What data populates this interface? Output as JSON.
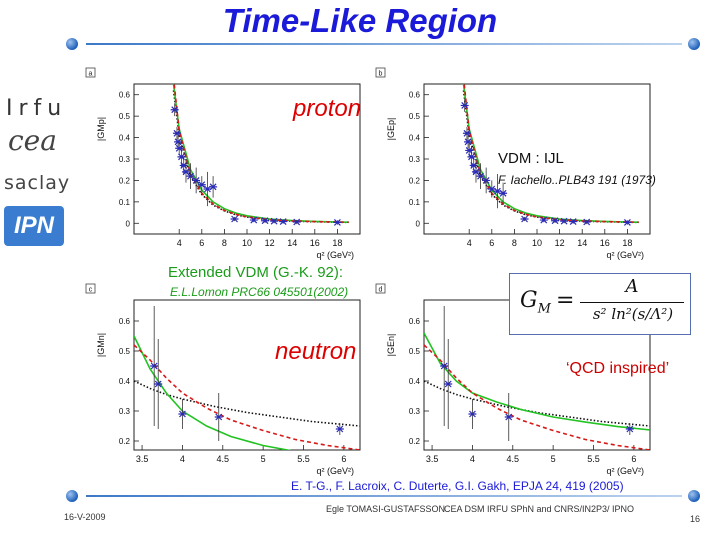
{
  "slide": {
    "title": "Time-Like  Region",
    "proton_label": "proton",
    "neutron_label": "neutron",
    "vdm_label": "VDM : IJL",
    "iachello_ref": "F. Iachello..PLB43 191 (1973)",
    "extended_vdm_label": "Extended VDM  (G.-K. 92):",
    "lomon_ref": "E.L.Lomon PRC66 045501(2002)",
    "qcd_label": "‘QCD inspired’",
    "formula_lhs": "G",
    "formula_sub": "M",
    "formula_eq": "=",
    "formula_num": "A",
    "formula_den": "s² ln²(s/Λ²)",
    "citation": "E. T-G., F. Lacroix, C. Duterte, G.I. Gakh, EPJA 24, 419 (2005)",
    "date": "16-V-2009",
    "author": "Egle TOMASI-GUSTAFSSON",
    "affiliation": "CEA DSM IRFU SPhN and  CNRS/IN2P3/ IPNO",
    "page_number": "16",
    "logos": {
      "irfu": "Irfu",
      "cea": "cea",
      "saclay": "saclay",
      "ipn": "IPN"
    }
  },
  "colors": {
    "title": "#1a1ad8",
    "model_green": "#22c322",
    "model_red": "#d61a1a",
    "model_black": "#111111",
    "data": "#2a2ab8"
  },
  "chart_data": [
    {
      "type": "scatter",
      "panel_tag": "a",
      "ylabel": "|GMp|",
      "xlabel": "q² (GeV²)",
      "xlim": [
        0,
        20
      ],
      "ylim": [
        -0.05,
        0.65
      ],
      "xticks": [
        "4",
        "6",
        "8",
        "10",
        "12",
        "14",
        "16",
        "18"
      ],
      "xtick_values": [
        4,
        6,
        8,
        10,
        12,
        14,
        16,
        18
      ],
      "yticks": [
        "0",
        "0.1",
        "0.2",
        "0.3",
        "0.4",
        "0.5",
        "0.6"
      ],
      "ytick_values": [
        0,
        0.1,
        0.2,
        0.3,
        0.4,
        0.5,
        0.6
      ],
      "points": [
        [
          3.6,
          0.53,
          0.03
        ],
        [
          3.8,
          0.42,
          0.03
        ],
        [
          3.9,
          0.38,
          0.03
        ],
        [
          4.0,
          0.35,
          0.03
        ],
        [
          4.2,
          0.31,
          0.05
        ],
        [
          4.4,
          0.27,
          0.04
        ],
        [
          4.6,
          0.24,
          0.05
        ],
        [
          5.0,
          0.22,
          0.06
        ],
        [
          5.5,
          0.2,
          0.06
        ],
        [
          6.0,
          0.18,
          0.04
        ],
        [
          6.5,
          0.16,
          0.08
        ],
        [
          7.0,
          0.17,
          0.05
        ],
        [
          8.9,
          0.02,
          0.01
        ],
        [
          10.6,
          0.015,
          0.01
        ],
        [
          11.6,
          0.012,
          0.01
        ],
        [
          12.4,
          0.01,
          0.01
        ],
        [
          13.2,
          0.008,
          0.01
        ],
        [
          14.4,
          0.006,
          0.01
        ],
        [
          18.0,
          0.004,
          0.01
        ]
      ],
      "green": [
        [
          3.5,
          0.65
        ],
        [
          4,
          0.44
        ],
        [
          5,
          0.25
        ],
        [
          6,
          0.155
        ],
        [
          7,
          0.1
        ],
        [
          8,
          0.068
        ],
        [
          9,
          0.048
        ],
        [
          10,
          0.035
        ],
        [
          12,
          0.02
        ],
        [
          14,
          0.013
        ],
        [
          16,
          0.009
        ],
        [
          18,
          0.006
        ],
        [
          19,
          0.005
        ]
      ],
      "red": [
        [
          3.5,
          0.68
        ],
        [
          4,
          0.43
        ],
        [
          5,
          0.23
        ],
        [
          6,
          0.14
        ],
        [
          7,
          0.09
        ],
        [
          8,
          0.06
        ],
        [
          9,
          0.042
        ],
        [
          10,
          0.03
        ],
        [
          12,
          0.017
        ],
        [
          14,
          0.011
        ],
        [
          16,
          0.008
        ],
        [
          18,
          0.006
        ],
        [
          19,
          0.005
        ]
      ],
      "black": [
        [
          3.5,
          0.62
        ],
        [
          4,
          0.41
        ],
        [
          5,
          0.22
        ],
        [
          6,
          0.135
        ],
        [
          7,
          0.085
        ],
        [
          8,
          0.058
        ],
        [
          9,
          0.04
        ],
        [
          10,
          0.029
        ],
        [
          12,
          0.016
        ],
        [
          14,
          0.01
        ],
        [
          16,
          0.007
        ],
        [
          18,
          0.005
        ],
        [
          19,
          0.004
        ]
      ]
    },
    {
      "type": "scatter",
      "panel_tag": "b",
      "ylabel": "|GEp|",
      "xlabel": "q² (GeV²)",
      "xlim": [
        0,
        20
      ],
      "ylim": [
        -0.05,
        0.65
      ],
      "xticks": [
        "4",
        "6",
        "8",
        "10",
        "12",
        "14",
        "16",
        "18"
      ],
      "xtick_values": [
        4,
        6,
        8,
        10,
        12,
        14,
        16,
        18
      ],
      "yticks": [
        "0",
        "0.1",
        "0.2",
        "0.3",
        "0.4",
        "0.5",
        "0.6"
      ],
      "ytick_values": [
        0,
        0.1,
        0.2,
        0.3,
        0.4,
        0.5,
        0.6
      ],
      "points": [
        [
          3.6,
          0.55,
          0.03
        ],
        [
          3.8,
          0.42,
          0.03
        ],
        [
          3.9,
          0.38,
          0.03
        ],
        [
          4.0,
          0.34,
          0.03
        ],
        [
          4.2,
          0.31,
          0.05
        ],
        [
          4.4,
          0.27,
          0.04
        ],
        [
          4.6,
          0.24,
          0.05
        ],
        [
          5.0,
          0.22,
          0.06
        ],
        [
          5.5,
          0.2,
          0.06
        ],
        [
          6.0,
          0.16,
          0.04
        ],
        [
          6.5,
          0.15,
          0.08
        ],
        [
          7.0,
          0.14,
          0.05
        ],
        [
          8.9,
          0.02,
          0.01
        ],
        [
          10.6,
          0.015,
          0.01
        ],
        [
          11.6,
          0.012,
          0.01
        ],
        [
          12.4,
          0.01,
          0.01
        ],
        [
          13.2,
          0.008,
          0.01
        ],
        [
          14.4,
          0.006,
          0.01
        ],
        [
          18.0,
          0.004,
          0.01
        ]
      ],
      "green": [
        [
          3.5,
          0.65
        ],
        [
          4,
          0.44
        ],
        [
          5,
          0.25
        ],
        [
          6,
          0.155
        ],
        [
          7,
          0.1
        ],
        [
          8,
          0.068
        ],
        [
          9,
          0.048
        ],
        [
          10,
          0.035
        ],
        [
          12,
          0.02
        ],
        [
          14,
          0.013
        ],
        [
          16,
          0.009
        ],
        [
          18,
          0.006
        ],
        [
          19,
          0.005
        ]
      ],
      "red": [
        [
          3.5,
          0.68
        ],
        [
          4,
          0.43
        ],
        [
          5,
          0.23
        ],
        [
          6,
          0.14
        ],
        [
          7,
          0.09
        ],
        [
          8,
          0.06
        ],
        [
          9,
          0.042
        ],
        [
          10,
          0.03
        ],
        [
          12,
          0.017
        ],
        [
          14,
          0.011
        ],
        [
          16,
          0.008
        ],
        [
          18,
          0.006
        ],
        [
          19,
          0.005
        ]
      ],
      "black": [
        [
          3.5,
          0.62
        ],
        [
          4,
          0.41
        ],
        [
          5,
          0.22
        ],
        [
          6,
          0.135
        ],
        [
          7,
          0.085
        ],
        [
          8,
          0.058
        ],
        [
          9,
          0.04
        ],
        [
          10,
          0.029
        ],
        [
          12,
          0.016
        ],
        [
          14,
          0.01
        ],
        [
          16,
          0.007
        ],
        [
          18,
          0.005
        ],
        [
          19,
          0.004
        ]
      ]
    },
    {
      "type": "scatter",
      "panel_tag": "c",
      "ylabel": "|GMn|",
      "xlabel": "q² (GeV²)",
      "xlim": [
        3.4,
        6.2
      ],
      "ylim": [
        0.17,
        0.67
      ],
      "xticks": [
        "3.5",
        "4",
        "4.5",
        "5",
        "5.5",
        "6"
      ],
      "xtick_values": [
        3.5,
        4,
        4.5,
        5,
        5.5,
        6
      ],
      "yticks": [
        "0.2",
        "0.3",
        "0.4",
        "0.5",
        "0.6"
      ],
      "ytick_values": [
        0.2,
        0.3,
        0.4,
        0.5,
        0.6
      ],
      "points": [
        [
          3.65,
          0.45,
          0.2
        ],
        [
          3.7,
          0.39,
          0.15
        ],
        [
          4.0,
          0.29,
          0.05
        ],
        [
          4.45,
          0.28,
          0.08
        ],
        [
          5.95,
          0.24,
          0.02
        ]
      ],
      "green": [
        [
          3.4,
          0.55
        ],
        [
          3.6,
          0.44
        ],
        [
          3.8,
          0.36
        ],
        [
          4.0,
          0.3
        ],
        [
          4.3,
          0.25
        ],
        [
          4.6,
          0.215
        ],
        [
          5.0,
          0.185
        ],
        [
          5.4,
          0.165
        ],
        [
          5.8,
          0.152
        ],
        [
          6.2,
          0.142
        ]
      ],
      "red": [
        [
          3.4,
          0.52
        ],
        [
          3.6,
          0.47
        ],
        [
          3.8,
          0.41
        ],
        [
          4.0,
          0.36
        ],
        [
          4.3,
          0.31
        ],
        [
          4.6,
          0.27
        ],
        [
          5.0,
          0.235
        ],
        [
          5.4,
          0.205
        ],
        [
          5.8,
          0.185
        ],
        [
          6.2,
          0.17
        ]
      ],
      "black": [
        [
          3.4,
          0.4
        ],
        [
          3.6,
          0.375
        ],
        [
          3.8,
          0.355
        ],
        [
          4.0,
          0.34
        ],
        [
          4.4,
          0.315
        ],
        [
          4.8,
          0.295
        ],
        [
          5.2,
          0.28
        ],
        [
          5.6,
          0.265
        ],
        [
          6.0,
          0.255
        ],
        [
          6.2,
          0.25
        ]
      ]
    },
    {
      "type": "scatter",
      "panel_tag": "d",
      "ylabel": "|GEn|",
      "xlabel": "q² (GeV²)",
      "xlim": [
        3.4,
        6.2
      ],
      "ylim": [
        0.17,
        0.67
      ],
      "xticks": [
        "3.5",
        "4",
        "4.5",
        "5",
        "5.5",
        "6"
      ],
      "xtick_values": [
        3.5,
        4,
        4.5,
        5,
        5.5,
        6
      ],
      "yticks": [
        "0.2",
        "0.3",
        "0.4",
        "0.5",
        "0.6"
      ],
      "ytick_values": [
        0.2,
        0.3,
        0.4,
        0.5,
        0.6
      ],
      "points": [
        [
          3.65,
          0.45,
          0.2
        ],
        [
          3.7,
          0.39,
          0.15
        ],
        [
          4.0,
          0.29,
          0.05
        ],
        [
          4.45,
          0.28,
          0.08
        ],
        [
          5.95,
          0.24,
          0.02
        ]
      ],
      "green": [
        [
          3.4,
          0.56
        ],
        [
          3.6,
          0.46
        ],
        [
          3.8,
          0.4
        ],
        [
          4.0,
          0.36
        ],
        [
          4.3,
          0.33
        ],
        [
          4.6,
          0.305
        ],
        [
          5.0,
          0.28
        ],
        [
          5.4,
          0.263
        ],
        [
          5.8,
          0.248
        ],
        [
          6.2,
          0.237
        ]
      ],
      "red": [
        [
          3.4,
          0.52
        ],
        [
          3.6,
          0.47
        ],
        [
          3.8,
          0.41
        ],
        [
          4.0,
          0.36
        ],
        [
          4.3,
          0.31
        ],
        [
          4.6,
          0.27
        ],
        [
          5.0,
          0.235
        ],
        [
          5.4,
          0.205
        ],
        [
          5.8,
          0.185
        ],
        [
          6.2,
          0.17
        ]
      ],
      "black": [
        [
          3.4,
          0.4
        ],
        [
          3.6,
          0.375
        ],
        [
          3.8,
          0.355
        ],
        [
          4.0,
          0.34
        ],
        [
          4.4,
          0.315
        ],
        [
          4.8,
          0.295
        ],
        [
          5.2,
          0.28
        ],
        [
          5.6,
          0.265
        ],
        [
          6.0,
          0.255
        ],
        [
          6.2,
          0.25
        ]
      ]
    }
  ]
}
